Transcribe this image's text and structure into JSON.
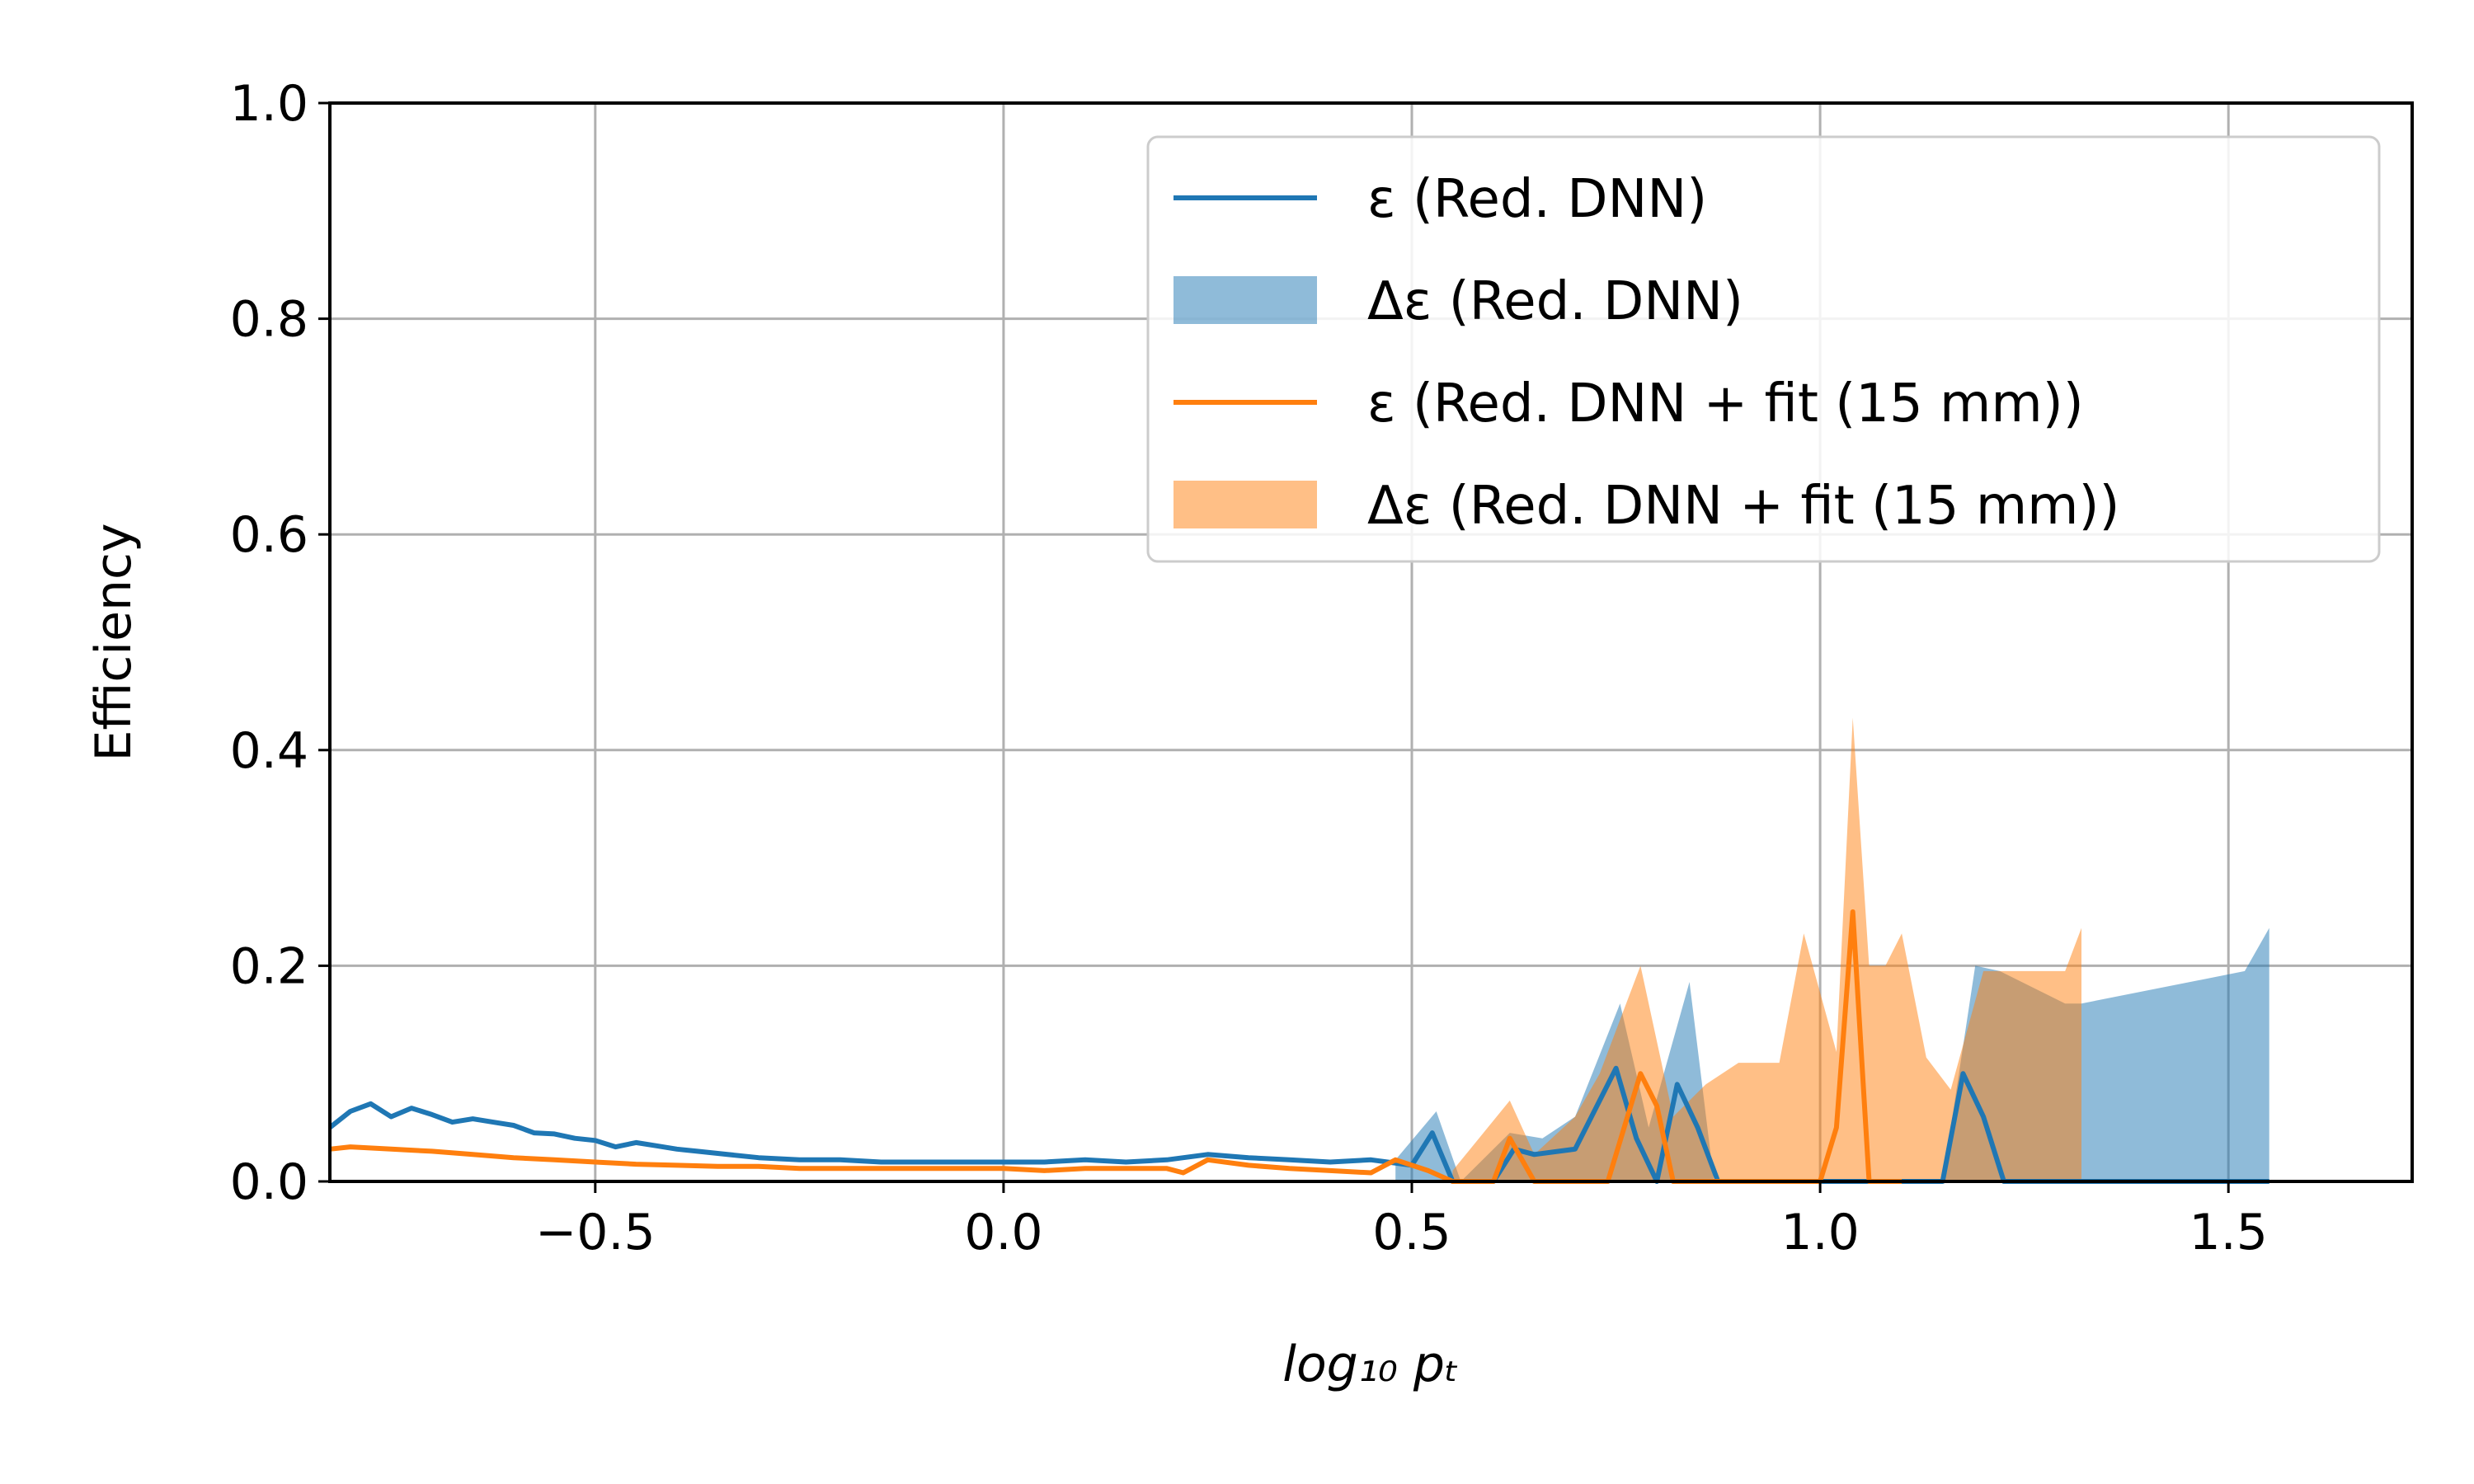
{
  "chart_data": {
    "type": "line",
    "title": "",
    "xlabel": "log₁₀ pₜ",
    "ylabel": "Efficiency",
    "xlim": [
      -0.825,
      1.725
    ],
    "ylim": [
      0.0,
      1.0
    ],
    "grid": true,
    "legend_position": "top-right",
    "x_ticks": [
      -0.5,
      0.0,
      0.5,
      1.0,
      1.5
    ],
    "x_tick_labels": [
      "−0.5",
      "0.0",
      "0.5",
      "1.0",
      "1.5"
    ],
    "y_ticks": [
      0.0,
      0.2,
      0.4,
      0.6,
      0.8,
      1.0
    ],
    "y_tick_labels": [
      "0.0",
      "0.2",
      "0.4",
      "0.6",
      "0.8",
      "1.0"
    ],
    "series": [
      {
        "name": "ε (Red. DNN)",
        "kind": "line",
        "color": "#1f77b4",
        "x": [
          -0.825,
          -0.8,
          -0.775,
          -0.75,
          -0.725,
          -0.7,
          -0.675,
          -0.65,
          -0.625,
          -0.6,
          -0.575,
          -0.55,
          -0.525,
          -0.5,
          -0.475,
          -0.45,
          -0.425,
          -0.4,
          -0.375,
          -0.35,
          -0.3,
          -0.25,
          -0.2,
          -0.15,
          -0.1,
          -0.05,
          0.0,
          0.05,
          0.1,
          0.15,
          0.2,
          0.25,
          0.3,
          0.35,
          0.4,
          0.45,
          0.5,
          0.525,
          0.55,
          0.6,
          0.625,
          0.65,
          0.7,
          0.75,
          0.775,
          0.8,
          0.825,
          0.85,
          0.875,
          1.0,
          1.15,
          1.175,
          1.2,
          1.225,
          1.5,
          1.55
        ],
        "y": [
          0.05,
          0.065,
          0.072,
          0.06,
          0.068,
          0.062,
          0.055,
          0.058,
          0.055,
          0.052,
          0.045,
          0.044,
          0.04,
          0.038,
          0.032,
          0.036,
          0.033,
          0.03,
          0.028,
          0.026,
          0.022,
          0.02,
          0.02,
          0.018,
          0.018,
          0.018,
          0.018,
          0.018,
          0.02,
          0.018,
          0.02,
          0.025,
          0.022,
          0.02,
          0.018,
          0.02,
          0.015,
          0.045,
          0.0,
          0.0,
          0.03,
          0.025,
          0.03,
          0.105,
          0.04,
          0.0,
          0.09,
          0.05,
          0.0,
          0.0,
          0.0,
          0.1,
          0.06,
          0.0,
          0.0,
          0.0
        ]
      },
      {
        "name": "Δε (Red. DNN)",
        "kind": "band",
        "color": "#1f77b4",
        "opacity": 0.5,
        "x": [
          0.48,
          0.53,
          0.56,
          0.62,
          0.66,
          0.7,
          0.755,
          0.79,
          0.84,
          0.87,
          1.15,
          1.19,
          1.22,
          1.3,
          1.32,
          1.52,
          1.55
        ],
        "upper": [
          0.02,
          0.065,
          0.0,
          0.045,
          0.04,
          0.06,
          0.165,
          0.05,
          0.185,
          0.0,
          0.0,
          0.2,
          0.195,
          0.165,
          0.165,
          0.195,
          0.235
        ],
        "lower": [
          0,
          0,
          0,
          0,
          0,
          0,
          0,
          0,
          0,
          0,
          0,
          0,
          0,
          0,
          0,
          0,
          0
        ]
      },
      {
        "name": "ε (Red. DNN + fit (15 mm))",
        "kind": "line",
        "color": "#ff7f0e",
        "x": [
          -0.825,
          -0.8,
          -0.75,
          -0.7,
          -0.65,
          -0.6,
          -0.55,
          -0.5,
          -0.45,
          -0.4,
          -0.35,
          -0.3,
          -0.25,
          -0.2,
          -0.15,
          -0.1,
          -0.05,
          0.0,
          0.05,
          0.1,
          0.15,
          0.2,
          0.22,
          0.25,
          0.3,
          0.35,
          0.4,
          0.45,
          0.48,
          0.52,
          0.55,
          0.6,
          0.62,
          0.65,
          0.7,
          0.74,
          0.78,
          0.8,
          0.82,
          0.85,
          1.0,
          1.02,
          1.04,
          1.06,
          1.08,
          1.1
        ],
        "y": [
          0.03,
          0.032,
          0.03,
          0.028,
          0.025,
          0.022,
          0.02,
          0.018,
          0.016,
          0.015,
          0.014,
          0.014,
          0.012,
          0.012,
          0.012,
          0.012,
          0.012,
          0.012,
          0.01,
          0.012,
          0.012,
          0.012,
          0.008,
          0.02,
          0.015,
          0.012,
          0.01,
          0.008,
          0.02,
          0.01,
          0.0,
          0.0,
          0.04,
          0.0,
          0.0,
          0.0,
          0.1,
          0.07,
          0.0,
          0.0,
          0.0,
          0.05,
          0.25,
          0.0,
          0.0,
          0.0
        ]
      },
      {
        "name": "Δε (Red. DNN + fit (15 mm))",
        "kind": "band",
        "color": "#ff7f0e",
        "opacity": 0.5,
        "x": [
          0.55,
          0.62,
          0.65,
          0.7,
          0.73,
          0.78,
          0.82,
          0.86,
          0.9,
          0.95,
          0.98,
          1.02,
          1.04,
          1.06,
          1.08,
          1.1,
          1.13,
          1.16,
          1.2,
          1.24,
          1.3,
          1.32
        ],
        "upper": [
          0.01,
          0.075,
          0.025,
          0.06,
          0.1,
          0.2,
          0.06,
          0.09,
          0.11,
          0.11,
          0.23,
          0.12,
          0.43,
          0.2,
          0.2,
          0.23,
          0.115,
          0.085,
          0.195,
          0.195,
          0.195,
          0.235
        ],
        "lower": [
          0,
          0,
          0,
          0,
          0,
          0,
          0,
          0,
          0,
          0,
          0,
          0,
          0,
          0,
          0,
          0,
          0,
          0,
          0,
          0,
          0,
          0
        ]
      }
    ]
  }
}
